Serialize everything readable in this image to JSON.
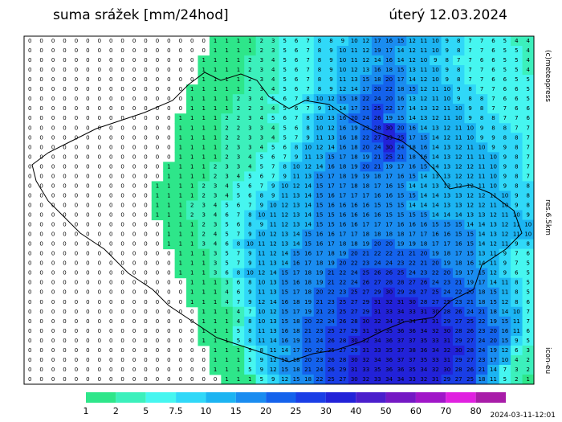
{
  "header": {
    "title": "suma srážek [mm/24hod]",
    "date": "úterý 12.03.2024"
  },
  "side": {
    "copyright": "(c)meteopress",
    "resolution": "res.6.5km",
    "model": "icon-eu"
  },
  "footer": {
    "run": "2024-03-11-12:01"
  },
  "legend": {
    "levels": [
      1,
      2,
      5,
      7.5,
      10,
      15,
      20,
      25,
      30,
      40,
      50,
      60,
      70,
      80
    ],
    "colors": [
      "#2ee68a",
      "#3cf0bc",
      "#46f6f0",
      "#30d8f8",
      "#1cb4f2",
      "#1a8cf0",
      "#1462ec",
      "#1a3ee6",
      "#2222d8",
      "#4a1ecc",
      "#7418c4",
      "#a016c8",
      "#e020e0",
      "#a81ca8"
    ]
  },
  "grid": {
    "rows": [
      [
        0,
        0,
        0,
        0,
        0,
        0,
        0,
        0,
        0,
        0,
        0,
        0,
        0,
        0,
        0,
        0,
        1,
        1,
        1,
        1,
        2,
        3,
        5,
        6,
        7,
        8,
        8,
        9,
        10,
        12,
        17,
        16,
        15,
        12,
        11,
        10,
        9,
        8,
        7,
        7,
        6,
        5,
        4,
        4
      ],
      [
        0,
        0,
        0,
        0,
        0,
        0,
        0,
        0,
        0,
        0,
        0,
        0,
        0,
        0,
        0,
        0,
        1,
        1,
        1,
        1,
        2,
        3,
        5,
        6,
        7,
        8,
        9,
        10,
        11,
        12,
        19,
        17,
        14,
        12,
        11,
        10,
        9,
        8,
        7,
        7,
        6,
        5,
        5,
        4
      ],
      [
        0,
        0,
        0,
        0,
        0,
        0,
        0,
        0,
        0,
        0,
        0,
        0,
        0,
        0,
        0,
        1,
        1,
        1,
        1,
        2,
        3,
        4,
        5,
        6,
        7,
        8,
        9,
        10,
        11,
        12,
        14,
        16,
        14,
        12,
        10,
        9,
        8,
        7,
        7,
        6,
        6,
        5,
        5,
        4
      ],
      [
        0,
        0,
        0,
        0,
        0,
        0,
        0,
        0,
        0,
        0,
        0,
        0,
        0,
        0,
        0,
        1,
        1,
        1,
        1,
        2,
        3,
        4,
        5,
        6,
        7,
        8,
        9,
        10,
        12,
        13,
        16,
        18,
        15,
        13,
        11,
        10,
        9,
        8,
        7,
        7,
        6,
        5,
        5,
        4
      ],
      [
        0,
        0,
        0,
        0,
        0,
        0,
        0,
        0,
        0,
        0,
        0,
        0,
        0,
        0,
        0,
        1,
        1,
        1,
        1,
        2,
        3,
        4,
        5,
        6,
        7,
        8,
        9,
        11,
        13,
        15,
        18,
        20,
        17,
        14,
        12,
        10,
        9,
        8,
        7,
        7,
        6,
        6,
        5,
        5
      ],
      [
        0,
        0,
        0,
        0,
        0,
        0,
        0,
        0,
        0,
        0,
        0,
        0,
        0,
        0,
        1,
        1,
        1,
        1,
        1,
        2,
        3,
        4,
        5,
        6,
        7,
        8,
        9,
        12,
        14,
        17,
        20,
        22,
        18,
        15,
        12,
        11,
        10,
        9,
        8,
        7,
        7,
        6,
        6,
        5
      ],
      [
        0,
        0,
        0,
        0,
        0,
        0,
        0,
        0,
        0,
        0,
        0,
        0,
        0,
        0,
        1,
        1,
        1,
        1,
        2,
        3,
        4,
        5,
        6,
        7,
        8,
        10,
        12,
        15,
        18,
        22,
        24,
        20,
        16,
        13,
        12,
        11,
        10,
        9,
        8,
        8,
        7,
        6,
        6,
        5
      ],
      [
        0,
        0,
        0,
        0,
        0,
        0,
        0,
        0,
        0,
        0,
        0,
        0,
        0,
        0,
        1,
        1,
        1,
        1,
        2,
        2,
        3,
        4,
        5,
        6,
        7,
        9,
        11,
        14,
        17,
        21,
        25,
        22,
        17,
        14,
        13,
        12,
        11,
        10,
        9,
        8,
        7,
        7,
        6,
        6
      ],
      [
        0,
        0,
        0,
        0,
        0,
        0,
        0,
        0,
        0,
        0,
        0,
        0,
        0,
        1,
        1,
        1,
        1,
        2,
        2,
        3,
        4,
        5,
        6,
        7,
        8,
        10,
        13,
        16,
        20,
        24,
        26,
        19,
        15,
        14,
        13,
        12,
        11,
        10,
        9,
        8,
        8,
        7,
        7,
        6
      ],
      [
        0,
        0,
        0,
        0,
        0,
        0,
        0,
        0,
        0,
        0,
        0,
        0,
        0,
        1,
        1,
        1,
        1,
        2,
        2,
        3,
        3,
        4,
        5,
        6,
        8,
        10,
        12,
        16,
        19,
        23,
        28,
        30,
        20,
        16,
        14,
        13,
        12,
        11,
        10,
        9,
        8,
        8,
        7,
        7
      ],
      [
        0,
        0,
        0,
        0,
        0,
        0,
        0,
        0,
        0,
        0,
        0,
        0,
        0,
        1,
        1,
        1,
        1,
        2,
        2,
        3,
        3,
        4,
        5,
        7,
        9,
        11,
        13,
        16,
        18,
        22,
        27,
        33,
        25,
        17,
        15,
        14,
        12,
        11,
        10,
        9,
        9,
        8,
        8,
        7
      ],
      [
        0,
        0,
        0,
        0,
        0,
        0,
        0,
        0,
        0,
        0,
        0,
        0,
        0,
        1,
        1,
        1,
        1,
        2,
        3,
        3,
        4,
        5,
        6,
        8,
        10,
        12,
        14,
        16,
        18,
        20,
        24,
        30,
        24,
        18,
        16,
        14,
        13,
        12,
        11,
        10,
        9,
        9,
        8,
        7
      ],
      [
        0,
        0,
        0,
        0,
        0,
        0,
        0,
        0,
        0,
        0,
        0,
        0,
        0,
        1,
        1,
        1,
        1,
        2,
        3,
        4,
        5,
        6,
        7,
        9,
        11,
        13,
        15,
        17,
        18,
        19,
        21,
        25,
        21,
        18,
        16,
        14,
        13,
        12,
        11,
        11,
        10,
        9,
        8,
        7
      ],
      [
        0,
        0,
        0,
        0,
        0,
        0,
        0,
        0,
        0,
        0,
        0,
        0,
        1,
        1,
        1,
        1,
        2,
        3,
        3,
        4,
        5,
        7,
        8,
        10,
        12,
        14,
        16,
        18,
        19,
        20,
        21,
        19,
        17,
        16,
        15,
        14,
        13,
        12,
        12,
        11,
        10,
        9,
        8,
        7
      ],
      [
        0,
        0,
        0,
        0,
        0,
        0,
        0,
        0,
        0,
        0,
        0,
        0,
        1,
        1,
        1,
        1,
        2,
        3,
        4,
        5,
        6,
        7,
        9,
        11,
        13,
        15,
        17,
        18,
        19,
        19,
        18,
        17,
        16,
        15,
        14,
        13,
        13,
        12,
        12,
        11,
        10,
        9,
        8,
        7
      ],
      [
        0,
        0,
        0,
        0,
        0,
        0,
        0,
        0,
        0,
        0,
        0,
        1,
        1,
        1,
        1,
        2,
        3,
        4,
        5,
        6,
        7,
        9,
        10,
        12,
        14,
        15,
        17,
        17,
        18,
        18,
        17,
        16,
        15,
        14,
        14,
        13,
        13,
        12,
        12,
        11,
        10,
        9,
        8,
        8
      ],
      [
        0,
        0,
        0,
        0,
        0,
        0,
        0,
        0,
        0,
        0,
        0,
        1,
        1,
        1,
        1,
        2,
        3,
        4,
        5,
        6,
        8,
        9,
        11,
        13,
        14,
        15,
        16,
        17,
        17,
        17,
        16,
        16,
        15,
        15,
        14,
        14,
        13,
        13,
        12,
        12,
        11,
        10,
        9,
        8
      ],
      [
        0,
        0,
        0,
        0,
        0,
        0,
        0,
        0,
        0,
        0,
        0,
        1,
        1,
        1,
        2,
        3,
        4,
        5,
        6,
        7,
        9,
        10,
        12,
        13,
        14,
        15,
        16,
        16,
        16,
        16,
        15,
        15,
        15,
        14,
        14,
        14,
        13,
        13,
        12,
        12,
        11,
        10,
        9,
        8
      ],
      [
        0,
        0,
        0,
        0,
        0,
        0,
        0,
        0,
        0,
        0,
        0,
        1,
        1,
        1,
        2,
        3,
        4,
        6,
        7,
        8,
        10,
        11,
        12,
        13,
        14,
        15,
        15,
        16,
        16,
        16,
        16,
        15,
        15,
        15,
        15,
        14,
        14,
        14,
        13,
        13,
        12,
        11,
        10,
        9
      ],
      [
        0,
        0,
        0,
        0,
        0,
        0,
        0,
        0,
        0,
        0,
        0,
        0,
        1,
        1,
        1,
        2,
        3,
        5,
        6,
        8,
        9,
        11,
        12,
        13,
        14,
        15,
        15,
        16,
        16,
        17,
        17,
        17,
        16,
        16,
        16,
        15,
        15,
        15,
        14,
        14,
        13,
        12,
        11,
        10
      ],
      [
        0,
        0,
        0,
        0,
        0,
        0,
        0,
        0,
        0,
        0,
        0,
        0,
        1,
        1,
        1,
        2,
        4,
        5,
        7,
        9,
        10,
        12,
        13,
        14,
        15,
        16,
        16,
        17,
        17,
        18,
        18,
        18,
        18,
        17,
        17,
        16,
        16,
        15,
        15,
        14,
        13,
        12,
        11,
        10
      ],
      [
        0,
        0,
        0,
        0,
        0,
        0,
        0,
        0,
        0,
        0,
        0,
        0,
        1,
        1,
        1,
        3,
        4,
        6,
        8,
        10,
        11,
        12,
        13,
        14,
        15,
        16,
        17,
        18,
        18,
        19,
        20,
        20,
        19,
        19,
        18,
        17,
        17,
        16,
        15,
        14,
        12,
        11,
        9,
        8
      ],
      [
        0,
        0,
        0,
        0,
        0,
        0,
        0,
        0,
        0,
        0,
        0,
        0,
        0,
        1,
        1,
        1,
        3,
        5,
        7,
        9,
        11,
        12,
        14,
        15,
        16,
        17,
        18,
        19,
        20,
        21,
        22,
        22,
        21,
        21,
        20,
        19,
        18,
        17,
        15,
        13,
        11,
        9,
        7,
        6
      ],
      [
        0,
        0,
        0,
        0,
        0,
        0,
        0,
        0,
        0,
        0,
        0,
        0,
        0,
        1,
        1,
        1,
        3,
        5,
        7,
        9,
        11,
        13,
        14,
        16,
        17,
        18,
        19,
        20,
        22,
        23,
        24,
        24,
        23,
        22,
        21,
        20,
        19,
        18,
        16,
        14,
        11,
        9,
        7,
        5
      ],
      [
        0,
        0,
        0,
        0,
        0,
        0,
        0,
        0,
        0,
        0,
        0,
        0,
        0,
        1,
        1,
        1,
        3,
        6,
        8,
        10,
        12,
        14,
        15,
        17,
        18,
        19,
        21,
        22,
        24,
        25,
        26,
        26,
        25,
        24,
        23,
        22,
        20,
        19,
        17,
        15,
        12,
        9,
        6,
        5
      ],
      [
        0,
        0,
        0,
        0,
        0,
        0,
        0,
        0,
        0,
        0,
        0,
        0,
        0,
        0,
        1,
        1,
        1,
        3,
        6,
        8,
        10,
        13,
        15,
        16,
        18,
        19,
        21,
        22,
        24,
        26,
        27,
        28,
        28,
        27,
        26,
        24,
        23,
        21,
        19,
        17,
        14,
        11,
        8,
        5
      ],
      [
        0,
        0,
        0,
        0,
        0,
        0,
        0,
        0,
        0,
        0,
        0,
        0,
        0,
        0,
        1,
        1,
        1,
        4,
        6,
        9,
        11,
        13,
        15,
        17,
        18,
        20,
        22,
        23,
        25,
        27,
        29,
        30,
        29,
        28,
        27,
        25,
        24,
        22,
        20,
        18,
        15,
        11,
        8,
        5
      ],
      [
        0,
        0,
        0,
        0,
        0,
        0,
        0,
        0,
        0,
        0,
        0,
        0,
        0,
        0,
        1,
        1,
        1,
        4,
        7,
        9,
        12,
        14,
        16,
        18,
        19,
        21,
        23,
        25,
        27,
        29,
        31,
        32,
        31,
        30,
        28,
        27,
        25,
        23,
        21,
        18,
        15,
        12,
        8,
        6
      ],
      [
        0,
        0,
        0,
        0,
        0,
        0,
        0,
        0,
        0,
        0,
        0,
        0,
        0,
        0,
        0,
        1,
        1,
        1,
        4,
        7,
        10,
        12,
        15,
        17,
        19,
        21,
        23,
        25,
        27,
        29,
        31,
        33,
        34,
        33,
        31,
        30,
        28,
        26,
        24,
        21,
        18,
        14,
        10,
        7
      ],
      [
        0,
        0,
        0,
        0,
        0,
        0,
        0,
        0,
        0,
        0,
        0,
        0,
        0,
        0,
        0,
        1,
        1,
        1,
        4,
        8,
        10,
        13,
        15,
        18,
        20,
        22,
        24,
        26,
        28,
        30,
        32,
        34,
        35,
        34,
        33,
        31,
        29,
        27,
        25,
        22,
        19,
        15,
        11,
        7
      ],
      [
        0,
        0,
        0,
        0,
        0,
        0,
        0,
        0,
        0,
        0,
        0,
        0,
        0,
        0,
        0,
        1,
        1,
        1,
        5,
        8,
        11,
        13,
        16,
        18,
        21,
        23,
        25,
        27,
        29,
        31,
        33,
        35,
        36,
        36,
        34,
        32,
        30,
        28,
        26,
        23,
        20,
        16,
        11,
        6
      ],
      [
        0,
        0,
        0,
        0,
        0,
        0,
        0,
        0,
        0,
        0,
        0,
        0,
        0,
        0,
        0,
        1,
        1,
        1,
        5,
        8,
        11,
        14,
        16,
        19,
        21,
        24,
        26,
        28,
        30,
        32,
        34,
        36,
        37,
        37,
        35,
        33,
        31,
        29,
        27,
        24,
        20,
        15,
        9,
        5
      ],
      [
        0,
        0,
        0,
        0,
        0,
        0,
        0,
        0,
        0,
        0,
        0,
        0,
        0,
        0,
        0,
        0,
        1,
        1,
        1,
        5,
        8,
        11,
        14,
        17,
        20,
        22,
        25,
        27,
        29,
        31,
        33,
        35,
        37,
        38,
        36,
        34,
        32,
        30,
        28,
        24,
        19,
        12,
        6,
        3
      ],
      [
        0,
        0,
        0,
        0,
        0,
        0,
        0,
        0,
        0,
        0,
        0,
        0,
        0,
        0,
        0,
        0,
        1,
        1,
        1,
        5,
        9,
        12,
        15,
        18,
        20,
        23,
        26,
        28,
        30,
        32,
        34,
        36,
        37,
        37,
        35,
        33,
        31,
        29,
        27,
        23,
        17,
        10,
        4,
        2
      ],
      [
        0,
        0,
        0,
        0,
        0,
        0,
        0,
        0,
        0,
        0,
        0,
        0,
        0,
        0,
        0,
        0,
        1,
        1,
        1,
        5,
        9,
        12,
        15,
        18,
        21,
        24,
        26,
        29,
        31,
        33,
        35,
        36,
        36,
        35,
        34,
        32,
        30,
        28,
        26,
        21,
        14,
        7,
        3,
        2
      ],
      [
        0,
        0,
        0,
        0,
        0,
        0,
        0,
        0,
        0,
        0,
        0,
        0,
        0,
        0,
        0,
        0,
        0,
        1,
        1,
        1,
        5,
        9,
        12,
        15,
        18,
        22,
        25,
        27,
        30,
        32,
        33,
        34,
        34,
        33,
        32,
        31,
        29,
        27,
        25,
        18,
        11,
        5,
        2,
        1
      ]
    ]
  }
}
